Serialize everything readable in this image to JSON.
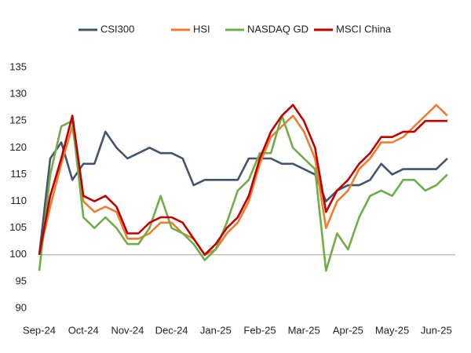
{
  "chart_data": {
    "type": "line",
    "categories": [
      "Sep-24",
      null,
      null,
      null,
      "Oct-24",
      null,
      null,
      null,
      "Nov-24",
      null,
      null,
      null,
      "Dec-24",
      null,
      null,
      null,
      "Jan-25",
      null,
      null,
      null,
      "Feb-25",
      null,
      null,
      null,
      "Mar-25",
      null,
      null,
      null,
      "Apr-25",
      null,
      null,
      null,
      "May-25",
      null,
      null,
      null,
      "Jun-25",
      null
    ],
    "series": [
      {
        "name": "CSI300",
        "color": "#44546a",
        "values": [
          100,
          118,
          121,
          114,
          117,
          117,
          123,
          120,
          118,
          119,
          120,
          119,
          119,
          118,
          113,
          114,
          114,
          114,
          114,
          118,
          118,
          118,
          117,
          117,
          116,
          115,
          110,
          112,
          113,
          113,
          114,
          117,
          115,
          116,
          116,
          116,
          116,
          118
        ]
      },
      {
        "name": "HSI",
        "color": "#ed7d31",
        "values": [
          100,
          109,
          117,
          124,
          110,
          108,
          109,
          108,
          103,
          103,
          104,
          106,
          106,
          104,
          103,
          100,
          101,
          104,
          106,
          110,
          117,
          122,
          124,
          126,
          123,
          118,
          105,
          110,
          112,
          116,
          118,
          121,
          121,
          122,
          124,
          126,
          128,
          126
        ]
      },
      {
        "name": "NASDAQ GD",
        "color": "#70ad47",
        "values": [
          97,
          115,
          124,
          125,
          107,
          105,
          107,
          105,
          102,
          102,
          105,
          111,
          105,
          104,
          102,
          99,
          101,
          106,
          112,
          114,
          119,
          119,
          126,
          120,
          118,
          116,
          97,
          104,
          101,
          107,
          111,
          112,
          111,
          114,
          114,
          112,
          113,
          115
        ]
      },
      {
        "name": "MSCI China",
        "color": "#c00000",
        "values": [
          100,
          111,
          118,
          126,
          111,
          110,
          111,
          109,
          104,
          104,
          106,
          107,
          107,
          106,
          103,
          100,
          102,
          105,
          107,
          111,
          118,
          123,
          126,
          128,
          125,
          120,
          108,
          112,
          114,
          117,
          119,
          122,
          122,
          123,
          123,
          125,
          125,
          125
        ]
      }
    ],
    "ylim": [
      90,
      135
    ],
    "yticks": [
      90,
      95,
      100,
      105,
      110,
      115,
      120,
      125,
      130,
      135
    ],
    "x_axis_crosses": 100,
    "grid": false,
    "legend": "top"
  }
}
